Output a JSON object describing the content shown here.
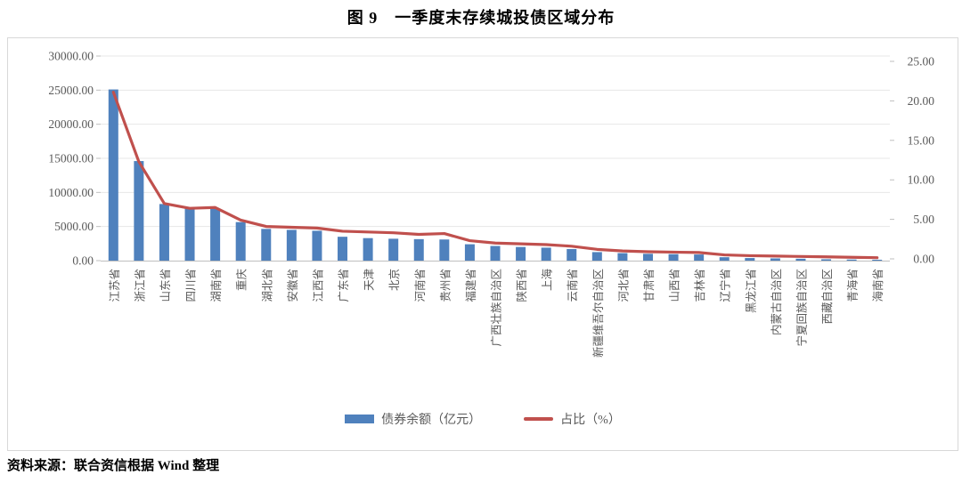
{
  "figure": {
    "title": "图 9　一季度末存续城投债区域分布",
    "source": "资料来源：联合资信根据 Wind 整理"
  },
  "legend": {
    "bars": "债券余额（亿元）",
    "line": "占比（%）"
  },
  "colors": {
    "bar": "#4F81BD",
    "line": "#C0504D",
    "axis_text": "#595959",
    "grid": "#E7E7E7",
    "axis_line": "#BFBFBF"
  },
  "chart_data": {
    "type": "bar+line combo",
    "title": "图 9　一季度末存续城投债区域分布",
    "grid": true,
    "legend_position": "bottom",
    "categories": [
      "江苏省",
      "浙江省",
      "山东省",
      "四川省",
      "湖南省",
      "重庆",
      "湖北省",
      "安徽省",
      "江西省",
      "广东省",
      "天津",
      "北京",
      "河南省",
      "贵州省",
      "福建省",
      "广西壮族自治区",
      "陕西省",
      "上海",
      "云南省",
      "新疆维吾尔自治区",
      "河北省",
      "甘肃省",
      "山西省",
      "吉林省",
      "辽宁省",
      "黑龙江省",
      "内蒙古自治区",
      "宁夏回族自治区",
      "西藏自治区",
      "青海省",
      "海南省"
    ],
    "series": [
      {
        "name": "债券余额（亿元）",
        "type": "bar",
        "axis": "left",
        "values": [
          25100,
          14600,
          8300,
          7650,
          7600,
          5650,
          4650,
          4510,
          4380,
          3500,
          3300,
          3210,
          3150,
          3100,
          2400,
          2150,
          2000,
          1900,
          1700,
          1250,
          1100,
          1000,
          950,
          900,
          500,
          380,
          330,
          280,
          200,
          160,
          130
        ]
      },
      {
        "name": "占比（%）",
        "type": "line",
        "axis": "right",
        "values": [
          21.1,
          12.3,
          7.0,
          6.4,
          6.5,
          4.9,
          4.1,
          4.0,
          3.9,
          3.5,
          3.4,
          3.3,
          3.1,
          3.2,
          2.3,
          2.0,
          1.9,
          1.8,
          1.6,
          1.2,
          1.0,
          0.9,
          0.85,
          0.8,
          0.5,
          0.4,
          0.35,
          0.3,
          0.25,
          0.2,
          0.15
        ]
      }
    ],
    "left_axis": {
      "min": 0,
      "max": 30000,
      "step": 5000,
      "tick_labels": [
        "0.00",
        "5000.00",
        "10000.00",
        "15000.00",
        "20000.00",
        "25000.00",
        "30000.00"
      ]
    },
    "right_axis": {
      "min": 0,
      "max": 25,
      "step": 5,
      "tick_labels": [
        "0.00",
        "5.00",
        "10.00",
        "15.00",
        "20.00",
        "25.00"
      ]
    }
  }
}
